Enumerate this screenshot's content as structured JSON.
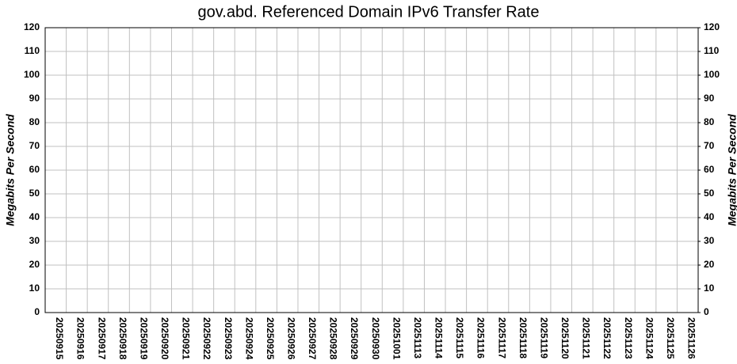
{
  "chart_data": {
    "type": "bar",
    "title": "gov.abd. Referenced Domain IPv6 Transfer Rate",
    "y_label": "Megabits Per Second",
    "y2_label": "Megabits Per Second",
    "categories": [
      "20250915",
      "20250916",
      "20250917",
      "20250918",
      "20250919",
      "20250920",
      "20250921",
      "20250922",
      "20250923",
      "20250924",
      "20250925",
      "20250926",
      "20250927",
      "20250928",
      "20250929",
      "20250930",
      "20251001",
      "20251113",
      "20251114",
      "20251115",
      "20251116",
      "20251117",
      "20251118",
      "20251119",
      "20251120",
      "20251121",
      "20251122",
      "20251123",
      "20251124",
      "20251125",
      "20251126"
    ],
    "values": [
      0,
      0,
      0,
      0,
      0,
      0,
      0,
      0,
      0,
      0,
      0,
      0,
      0,
      0,
      0,
      0,
      0,
      0,
      0,
      0,
      0,
      0,
      0,
      0,
      0,
      0,
      0,
      0,
      0,
      0,
      0
    ],
    "color": "#1a1a8c",
    "ylim": [
      0,
      120
    ],
    "yticks": [
      0,
      10,
      20,
      30,
      40,
      50,
      60,
      70,
      80,
      90,
      100,
      110,
      120
    ],
    "y2lim": [
      0,
      120
    ],
    "y2ticks": [
      0,
      10,
      20,
      30,
      40,
      50,
      60,
      70,
      80,
      90,
      100,
      110,
      120
    ],
    "grid": true
  }
}
